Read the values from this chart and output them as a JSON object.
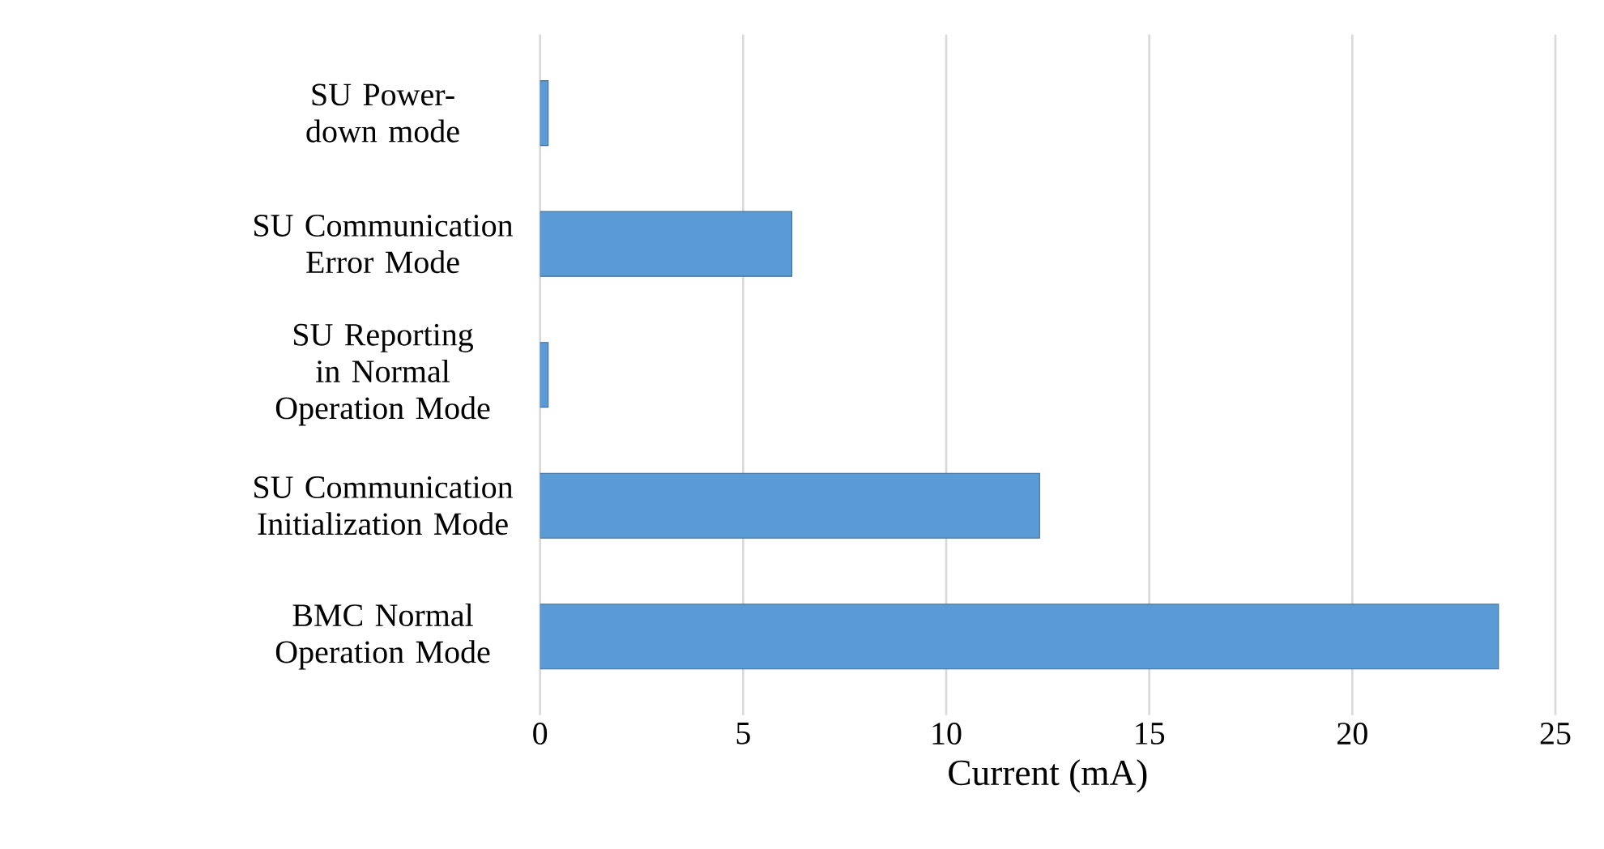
{
  "chart_data": {
    "type": "bar",
    "orientation": "horizontal",
    "xlabel": "Current (mA)",
    "categories": [
      "SU Power-down mode",
      "SU Communication Error Mode",
      "SU Reporting in Normal Operation Mode",
      "SU Communication Initialization Mode",
      "BMC Normal Operation Mode"
    ],
    "values": [
      0.2,
      6.2,
      0.2,
      12.3,
      23.6
    ],
    "color": "#5b9bd5",
    "xlim": [
      0,
      25
    ],
    "xticks": [
      0,
      5,
      10,
      15,
      20,
      25
    ],
    "grid": "x"
  }
}
